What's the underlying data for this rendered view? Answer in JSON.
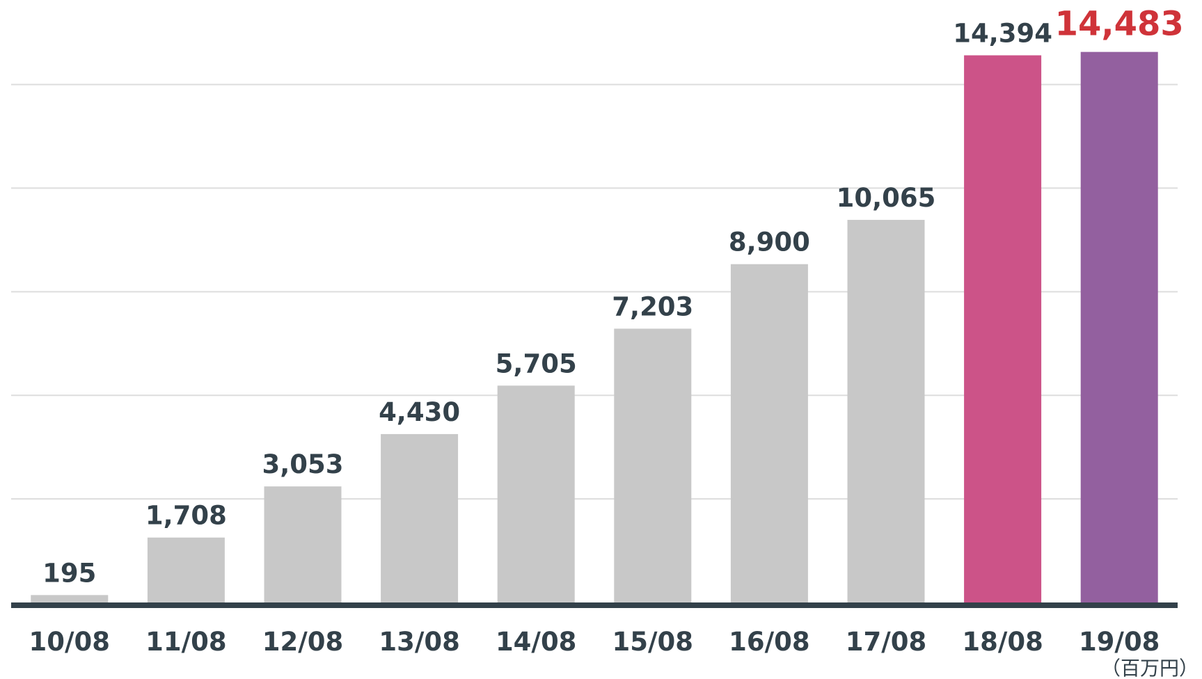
{
  "chart_data": {
    "type": "bar",
    "categories": [
      "10/08",
      "11/08",
      "12/08",
      "13/08",
      "14/08",
      "15/08",
      "16/08",
      "17/08",
      "18/08",
      "19/08"
    ],
    "values": [
      195,
      1708,
      3053,
      4430,
      5705,
      7203,
      8900,
      10065,
      14394,
      14483
    ],
    "value_labels": [
      "195",
      "1,708",
      "3,053",
      "4,430",
      "5,705",
      "7,203",
      "8,900",
      "10,065",
      "14,394",
      "14,483"
    ],
    "bar_colors": [
      "#c8c8c8",
      "#c8c8c8",
      "#c8c8c8",
      "#c8c8c8",
      "#c8c8c8",
      "#c8c8c8",
      "#c8c8c8",
      "#c8c8c8",
      "#cc5388",
      "#93609f"
    ],
    "label_colors": [
      "#33414a",
      "#33414a",
      "#33414a",
      "#33414a",
      "#33414a",
      "#33414a",
      "#33414a",
      "#33414a",
      "#33414a",
      "#cf3339"
    ],
    "highlight_index": 9,
    "unit": "（百万円）",
    "title": "",
    "xlabel": "",
    "ylabel": "",
    "ylim": [
      0,
      15000
    ],
    "grid": true,
    "legend": "none"
  }
}
